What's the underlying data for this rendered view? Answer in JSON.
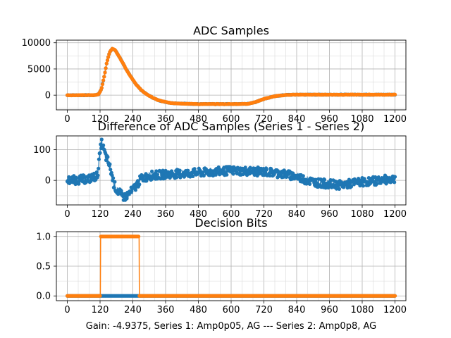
{
  "figure": {
    "footer": "Gain: -4.9375, Series 1: Amp0p05, AG --- Series 2: Amp0p8, AG"
  },
  "chart_data": [
    {
      "type": "line",
      "title": "ADC Samples",
      "xlabel": "",
      "ylabel": "",
      "xlim": [
        -40,
        1240
      ],
      "ylim": [
        -2800,
        10500
      ],
      "x_ticks": [
        0,
        120,
        240,
        360,
        480,
        600,
        720,
        840,
        960,
        1080,
        1200
      ],
      "x_tick_labels": [
        "0",
        "120",
        "240",
        "360",
        "480",
        "600",
        "720",
        "840",
        "960",
        "1080",
        "1200"
      ],
      "y_ticks": [
        0,
        5000,
        10000
      ],
      "y_tick_labels": [
        "0",
        "5000",
        "10000"
      ],
      "grid": true,
      "series": [
        {
          "name": "Series 1",
          "color": "#1f77b4",
          "marker": "dot",
          "x": [
            0,
            100,
            115,
            125,
            135,
            145,
            155,
            165,
            175,
            185,
            195,
            205,
            215,
            230,
            250,
            270,
            290,
            310,
            330,
            350,
            380,
            420,
            480,
            540,
            600,
            660,
            690,
            720,
            760,
            800,
            840,
            900,
            1000,
            1100,
            1200
          ],
          "values": [
            0,
            0,
            200,
            1200,
            3500,
            6300,
            8200,
            8900,
            8600,
            7800,
            6900,
            6000,
            5000,
            3700,
            2200,
            1000,
            200,
            -400,
            -900,
            -1200,
            -1500,
            -1600,
            -1700,
            -1700,
            -1700,
            -1650,
            -1300,
            -700,
            -200,
            50,
            100,
            100,
            100,
            100,
            100
          ]
        },
        {
          "name": "Series 2",
          "color": "#ff7f0e",
          "marker": "dot",
          "x": [
            0,
            100,
            115,
            125,
            135,
            145,
            155,
            165,
            175,
            185,
            195,
            205,
            215,
            230,
            250,
            270,
            290,
            310,
            330,
            350,
            380,
            420,
            480,
            540,
            600,
            660,
            690,
            720,
            760,
            800,
            840,
            900,
            1000,
            1100,
            1200
          ],
          "values": [
            0,
            0,
            200,
            1200,
            3500,
            6300,
            8200,
            8900,
            8600,
            7800,
            6900,
            6000,
            5000,
            3700,
            2200,
            1000,
            200,
            -400,
            -900,
            -1200,
            -1500,
            -1600,
            -1700,
            -1700,
            -1700,
            -1650,
            -1300,
            -700,
            -200,
            50,
            100,
            100,
            100,
            100,
            100
          ]
        }
      ]
    },
    {
      "type": "scatter",
      "title": "Difference of ADC Samples (Series 1 - Series 2)",
      "xlabel": "",
      "ylabel": "",
      "xlim": [
        -40,
        1240
      ],
      "ylim": [
        -80,
        145
      ],
      "x_ticks": [
        0,
        120,
        240,
        360,
        480,
        600,
        720,
        840,
        960,
        1080,
        1200
      ],
      "x_tick_labels": [
        "0",
        "120",
        "240",
        "360",
        "480",
        "600",
        "720",
        "840",
        "960",
        "1080",
        "1200"
      ],
      "y_ticks": [
        0,
        100
      ],
      "y_tick_labels": [
        "0",
        "100"
      ],
      "grid": true,
      "series": [
        {
          "name": "Difference",
          "color": "#1f77b4",
          "marker": "dot",
          "x": [
            0,
            40,
            80,
            110,
            120,
            125,
            130,
            140,
            150,
            160,
            170,
            180,
            195,
            210,
            230,
            250,
            270,
            300,
            360,
            420,
            480,
            540,
            600,
            660,
            720,
            760,
            800,
            840,
            880,
            920,
            960,
            1000,
            1040,
            1080,
            1120,
            1160,
            1200
          ],
          "values": [
            0,
            2,
            5,
            15,
            90,
            125,
            110,
            80,
            60,
            30,
            -10,
            -30,
            -45,
            -55,
            -40,
            -20,
            5,
            15,
            20,
            22,
            25,
            28,
            32,
            30,
            28,
            25,
            20,
            12,
            0,
            -8,
            -12,
            -15,
            -10,
            -5,
            -2,
            2,
            5
          ],
          "noise_amplitude": 14
        }
      ]
    },
    {
      "type": "line",
      "title": "Decision Bits",
      "xlabel": "",
      "ylabel": "",
      "xlim": [
        -40,
        1240
      ],
      "ylim": [
        -0.08,
        1.08
      ],
      "x_ticks": [
        0,
        120,
        240,
        360,
        480,
        600,
        720,
        840,
        960,
        1080,
        1200
      ],
      "x_tick_labels": [
        "0",
        "120",
        "240",
        "360",
        "480",
        "600",
        "720",
        "840",
        "960",
        "1080",
        "1200"
      ],
      "y_ticks": [
        0,
        0.5,
        1
      ],
      "y_tick_labels": [
        "0.0",
        "0.5",
        "1.0"
      ],
      "grid": true,
      "series": [
        {
          "name": "Series 1",
          "color": "#1f77b4",
          "marker": "dot",
          "x": [
            0,
            121,
            122,
            263,
            264,
            1200
          ],
          "values": [
            0,
            0,
            0,
            0,
            0,
            0
          ]
        },
        {
          "name": "Series 2",
          "color": "#ff7f0e",
          "marker": "dot",
          "x": [
            0,
            121,
            122,
            263,
            264,
            1200
          ],
          "values": [
            0,
            0,
            1,
            1,
            0,
            0
          ]
        }
      ]
    }
  ]
}
